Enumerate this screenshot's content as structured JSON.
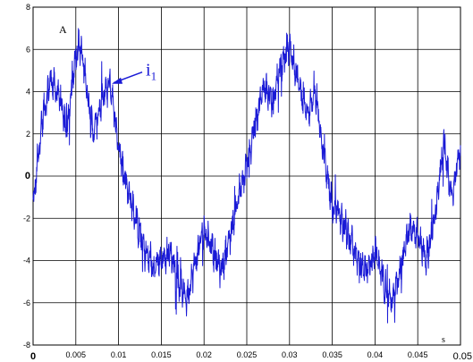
{
  "chart_data": {
    "type": "line",
    "title": "",
    "xlabel": "s",
    "ylabel": "A",
    "xlim": [
      0,
      0.05
    ],
    "ylim": [
      -8,
      8
    ],
    "grid": true,
    "x_ticks": [
      "0",
      "0.005",
      "0.01",
      "0.015",
      "0.02",
      "0.025",
      "0.03",
      "0.035",
      "0.04",
      "0.045",
      "0.05"
    ],
    "y_ticks": [
      "8",
      "6",
      "4",
      "2",
      "0",
      "-2",
      "-4",
      "-6",
      "-8"
    ],
    "series": [
      {
        "name": "i1",
        "color": "#1a1ad6",
        "x": [
          0,
          0.001,
          0.002,
          0.003,
          0.004,
          0.005,
          0.0055,
          0.006,
          0.007,
          0.008,
          0.009,
          0.01,
          0.011,
          0.012,
          0.013,
          0.014,
          0.015,
          0.016,
          0.017,
          0.018,
          0.019,
          0.02,
          0.021,
          0.022,
          0.023,
          0.024,
          0.025,
          0.026,
          0.027,
          0.028,
          0.029,
          0.03,
          0.031,
          0.032,
          0.033,
          0.034,
          0.035,
          0.036,
          0.037,
          0.038,
          0.039,
          0.04,
          0.041,
          0.042,
          0.043,
          0.044,
          0.045,
          0.046,
          0.047,
          0.048,
          0.049,
          0.05
        ],
        "values": [
          -1.5,
          2.5,
          4.6,
          3.8,
          2.2,
          5.8,
          6.2,
          5.0,
          2.0,
          3.5,
          4.5,
          1.5,
          -0.5,
          -2.0,
          -3.5,
          -4.3,
          -4.0,
          -3.5,
          -5.0,
          -5.8,
          -4.0,
          -2.5,
          -3.5,
          -4.5,
          -3.0,
          -1.0,
          0.5,
          2.5,
          4.3,
          3.5,
          5.2,
          6.2,
          4.5,
          3.0,
          3.8,
          1.0,
          -1.5,
          -2.0,
          -3.0,
          -4.0,
          -4.5,
          -3.5,
          -5.0,
          -6.0,
          -4.5,
          -2.5,
          -2.8,
          -4.0,
          -2.0,
          1.5,
          -1.0,
          1.5
        ]
      }
    ],
    "annotation": {
      "text": "i",
      "subscript": "1",
      "x": 0.009,
      "y": 4.5
    }
  }
}
